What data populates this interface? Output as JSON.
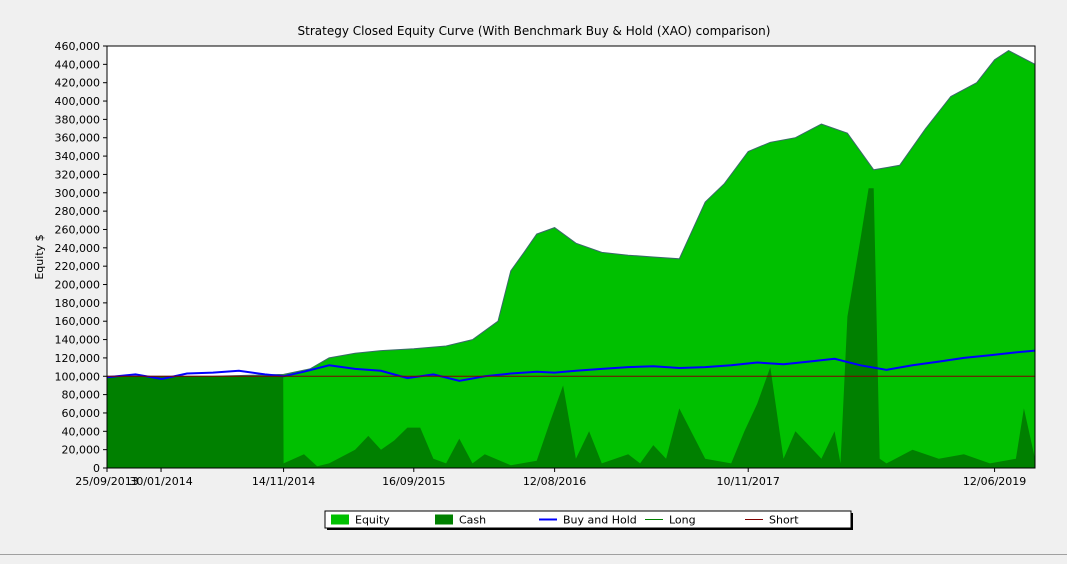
{
  "chart_data": {
    "type": "area",
    "title": "Strategy Closed Equity Curve (With Benchmark Buy & Hold (XAO) comparison)",
    "ylabel": "Equity $",
    "xlabel": "",
    "ylim": [
      0,
      460000
    ],
    "yticks": [
      0,
      20000,
      40000,
      60000,
      80000,
      100000,
      120000,
      140000,
      160000,
      180000,
      200000,
      220000,
      240000,
      260000,
      280000,
      300000,
      320000,
      340000,
      360000,
      380000,
      400000,
      420000,
      440000,
      460000
    ],
    "ytick_labels": [
      "0",
      "20,000",
      "40,000",
      "60,000",
      "80,000",
      "100,000",
      "120,000",
      "140,000",
      "160,000",
      "180,000",
      "200,000",
      "220,000",
      "240,000",
      "260,000",
      "280,000",
      "300,000",
      "320,000",
      "340,000",
      "360,000",
      "380,000",
      "400,000",
      "420,000",
      "440,000",
      "460,000"
    ],
    "xlim": [
      "2013-09-25",
      "2019-09-15"
    ],
    "xticks": [
      "2013-09-25",
      "2014-01-30",
      "2014-11-14",
      "2015-09-16",
      "2016-08-12",
      "2017-11-10",
      "2019-06-12"
    ],
    "xtick_labels": [
      "25/09/2013",
      "30/01/2014",
      "14/11/2014",
      "16/09/2015",
      "12/08/2016",
      "10/11/2017",
      "12/06/2019"
    ],
    "legend_placement": "bottom",
    "series": [
      {
        "name": "Equity",
        "kind": "area",
        "color": "#00c000",
        "x": [
          "2013-09-25",
          "2014-06-01",
          "2014-11-14",
          "2015-01-15",
          "2015-03-01",
          "2015-05-01",
          "2015-07-01",
          "2015-09-16",
          "2015-12-01",
          "2016-02-01",
          "2016-04-01",
          "2016-05-01",
          "2016-06-01",
          "2016-07-01",
          "2016-08-12",
          "2016-10-01",
          "2016-12-01",
          "2017-02-01",
          "2017-04-01",
          "2017-06-01",
          "2017-08-01",
          "2017-09-15",
          "2017-11-10",
          "2018-01-01",
          "2018-03-01",
          "2018-05-01",
          "2018-07-01",
          "2018-09-01",
          "2018-11-01",
          "2019-01-01",
          "2019-03-01",
          "2019-05-01",
          "2019-06-12",
          "2019-07-15",
          "2019-09-15"
        ],
        "values": [
          100000,
          100000,
          102000,
          108000,
          120000,
          125000,
          128000,
          130000,
          133000,
          140000,
          160000,
          215000,
          235000,
          255000,
          262000,
          245000,
          235000,
          232000,
          230000,
          228000,
          290000,
          310000,
          345000,
          355000,
          360000,
          375000,
          365000,
          325000,
          330000,
          370000,
          405000,
          420000,
          445000,
          455000,
          440000
        ]
      },
      {
        "name": "Cash",
        "kind": "area",
        "color": "#008000",
        "x": [
          "2013-09-25",
          "2014-11-13",
          "2014-11-14",
          "2015-01-01",
          "2015-02-01",
          "2015-03-01",
          "2015-05-01",
          "2015-06-01",
          "2015-07-01",
          "2015-08-01",
          "2015-09-01",
          "2015-10-01",
          "2015-11-01",
          "2015-12-01",
          "2016-01-01",
          "2016-02-01",
          "2016-03-01",
          "2016-05-01",
          "2016-07-01",
          "2016-08-01",
          "2016-09-01",
          "2016-10-01",
          "2016-11-01",
          "2016-12-01",
          "2017-02-01",
          "2017-03-01",
          "2017-04-01",
          "2017-05-01",
          "2017-06-01",
          "2017-08-01",
          "2017-10-01",
          "2017-11-01",
          "2017-12-01",
          "2018-01-01",
          "2018-02-01",
          "2018-03-01",
          "2018-04-01",
          "2018-05-01",
          "2018-06-01",
          "2018-06-15",
          "2018-07-01",
          "2018-08-01",
          "2018-08-20",
          "2018-09-01",
          "2018-09-15",
          "2018-10-01",
          "2018-12-01",
          "2019-02-01",
          "2019-04-01",
          "2019-06-01",
          "2019-08-01",
          "2019-08-20",
          "2019-09-15"
        ],
        "values": [
          100000,
          100000,
          5000,
          15000,
          2000,
          5000,
          20000,
          35000,
          20000,
          30000,
          44000,
          44000,
          10000,
          5000,
          32000,
          5000,
          15000,
          3000,
          8000,
          50000,
          90000,
          10000,
          40000,
          5000,
          15000,
          5000,
          25000,
          10000,
          65000,
          10000,
          5000,
          40000,
          70000,
          110000,
          10000,
          40000,
          25000,
          10000,
          40000,
          5000,
          165000,
          250000,
          305000,
          305000,
          10000,
          5000,
          20000,
          10000,
          15000,
          5000,
          10000,
          65000,
          10000
        ]
      },
      {
        "name": "Buy and Hold",
        "kind": "line",
        "color": "#0000ff",
        "x": [
          "2013-09-25",
          "2013-12-01",
          "2014-02-01",
          "2014-04-01",
          "2014-06-01",
          "2014-08-01",
          "2014-10-01",
          "2014-11-14",
          "2015-01-01",
          "2015-03-01",
          "2015-05-01",
          "2015-07-01",
          "2015-09-01",
          "2015-11-01",
          "2016-01-01",
          "2016-03-01",
          "2016-05-01",
          "2016-07-01",
          "2016-08-12",
          "2016-10-01",
          "2016-12-01",
          "2017-02-01",
          "2017-04-01",
          "2017-06-01",
          "2017-08-01",
          "2017-10-01",
          "2017-12-01",
          "2018-02-01",
          "2018-04-01",
          "2018-06-01",
          "2018-08-01",
          "2018-10-01",
          "2018-12-01",
          "2019-02-01",
          "2019-04-01",
          "2019-06-01",
          "2019-08-01",
          "2019-09-15"
        ],
        "values": [
          99000,
          102000,
          97000,
          103000,
          104000,
          106000,
          102000,
          100000,
          105000,
          112000,
          108000,
          106000,
          98000,
          102000,
          95000,
          100000,
          103000,
          105000,
          104000,
          106000,
          108000,
          110000,
          111000,
          109000,
          110000,
          112000,
          115000,
          113000,
          116000,
          119000,
          112000,
          107000,
          112000,
          116000,
          120000,
          123000,
          126000,
          128000
        ]
      },
      {
        "name": "Long",
        "kind": "line",
        "color": "#008000",
        "x": [],
        "values": []
      },
      {
        "name": "Short",
        "kind": "line",
        "color": "#800000",
        "x": [
          "2013-09-25",
          "2019-09-15"
        ],
        "values": [
          100000,
          100000
        ]
      }
    ]
  }
}
